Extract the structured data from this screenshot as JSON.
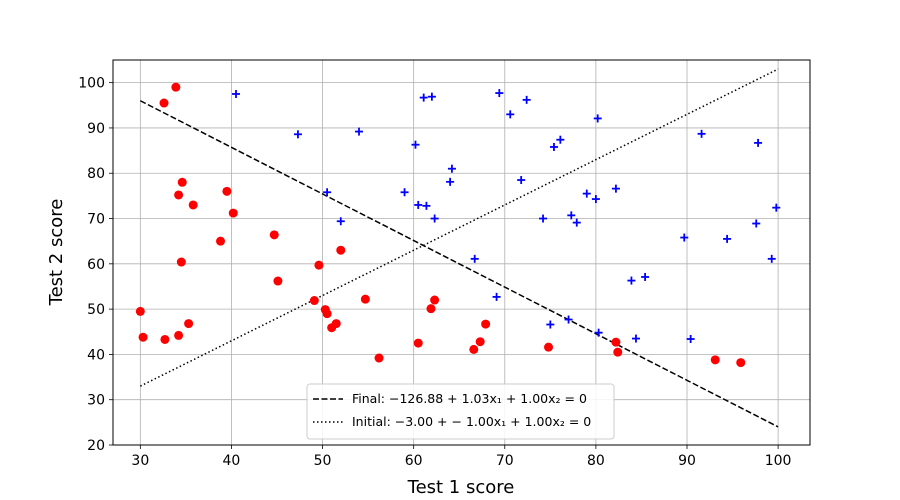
{
  "chart_data": {
    "type": "scatter",
    "xlabel": "Test 1 score",
    "ylabel": "Test 2 score",
    "xlim": [
      27,
      103.5
    ],
    "ylim": [
      20,
      105
    ],
    "xticks": [
      30,
      40,
      50,
      60,
      70,
      80,
      90,
      100
    ],
    "yticks": [
      20,
      30,
      40,
      50,
      60,
      70,
      80,
      90,
      100
    ],
    "grid": true,
    "legend_position": "bottom-center",
    "series": [
      {
        "marker": "circle",
        "color": "#ff0000",
        "points": [
          [
            30.0,
            49.5
          ],
          [
            30.3,
            43.8
          ],
          [
            32.6,
            95.5
          ],
          [
            32.7,
            43.3
          ],
          [
            33.9,
            99.0
          ],
          [
            34.2,
            75.2
          ],
          [
            34.2,
            44.2
          ],
          [
            34.5,
            60.4
          ],
          [
            34.6,
            78.0
          ],
          [
            35.3,
            46.8
          ],
          [
            35.8,
            73.0
          ],
          [
            38.8,
            65.0
          ],
          [
            39.5,
            76.0
          ],
          [
            40.2,
            71.2
          ],
          [
            44.7,
            66.4
          ],
          [
            45.1,
            56.2
          ],
          [
            49.1,
            51.9
          ],
          [
            49.6,
            59.7
          ],
          [
            50.3,
            49.9
          ],
          [
            50.5,
            49.0
          ],
          [
            51.0,
            45.9
          ],
          [
            51.5,
            46.8
          ],
          [
            52.0,
            63.0
          ],
          [
            54.7,
            52.2
          ],
          [
            56.2,
            39.2
          ],
          [
            60.5,
            42.5
          ],
          [
            61.9,
            50.1
          ],
          [
            62.3,
            52.0
          ],
          [
            66.6,
            41.1
          ],
          [
            67.3,
            42.8
          ],
          [
            67.9,
            46.7
          ],
          [
            74.8,
            41.6
          ],
          [
            82.2,
            42.7
          ],
          [
            82.4,
            40.5
          ],
          [
            93.1,
            38.8
          ],
          [
            95.9,
            38.2
          ]
        ]
      },
      {
        "marker": "plus",
        "color": "#0000ff",
        "points": [
          [
            40.5,
            97.5
          ],
          [
            47.3,
            88.6
          ],
          [
            50.5,
            75.8
          ],
          [
            52.0,
            69.4
          ],
          [
            54.0,
            89.2
          ],
          [
            59.0,
            75.8
          ],
          [
            60.2,
            86.3
          ],
          [
            60.5,
            73.0
          ],
          [
            61.1,
            96.7
          ],
          [
            61.4,
            72.8
          ],
          [
            62.0,
            96.9
          ],
          [
            62.3,
            70.0
          ],
          [
            64.0,
            78.1
          ],
          [
            64.2,
            81.0
          ],
          [
            66.7,
            61.1
          ],
          [
            69.1,
            52.7
          ],
          [
            69.4,
            97.7
          ],
          [
            70.6,
            93.0
          ],
          [
            71.8,
            78.5
          ],
          [
            72.4,
            96.2
          ],
          [
            74.2,
            70.0
          ],
          [
            75.0,
            46.6
          ],
          [
            75.4,
            85.8
          ],
          [
            76.1,
            87.4
          ],
          [
            77.0,
            47.7
          ],
          [
            77.3,
            70.7
          ],
          [
            77.9,
            69.1
          ],
          [
            79.0,
            75.5
          ],
          [
            80.0,
            74.3
          ],
          [
            80.2,
            92.1
          ],
          [
            80.3,
            44.8
          ],
          [
            82.2,
            76.6
          ],
          [
            83.9,
            56.3
          ],
          [
            84.4,
            43.5
          ],
          [
            85.4,
            57.1
          ],
          [
            89.7,
            65.8
          ],
          [
            90.4,
            43.4
          ],
          [
            91.6,
            88.7
          ],
          [
            94.4,
            65.5
          ],
          [
            97.6,
            68.9
          ],
          [
            97.8,
            86.7
          ],
          [
            99.3,
            61.1
          ],
          [
            99.8,
            72.4
          ]
        ]
      }
    ],
    "lines": [
      {
        "style": "dashed",
        "color": "#000000",
        "x": [
          30,
          100
        ],
        "y": [
          96.0,
          24.0
        ],
        "legend_label": "Final: −126.88 + 1.03x₁ + 1.00x₂ = 0"
      },
      {
        "style": "dotted",
        "color": "#000000",
        "x": [
          30,
          100
        ],
        "y": [
          33.0,
          103.0
        ],
        "legend_label": "Initial: −3.00 + − 1.00x₁ + 1.00x₂ = 0"
      }
    ]
  }
}
